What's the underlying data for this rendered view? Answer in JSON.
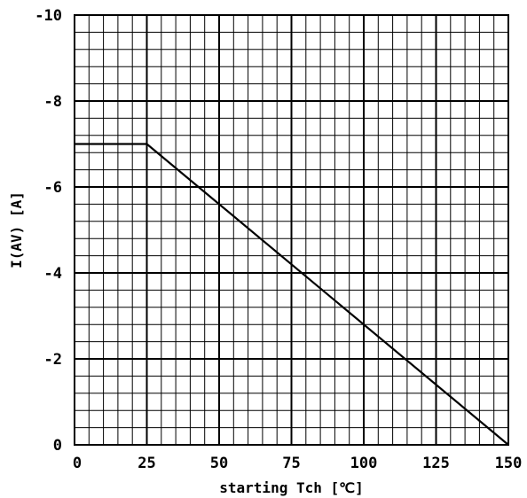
{
  "chart_data": {
    "type": "line",
    "title": "",
    "xlabel": "starting Tch [℃]",
    "ylabel": "I(AV) [A]",
    "xlim": [
      0,
      150
    ],
    "ylim": [
      0,
      -10
    ],
    "x_ticks": [
      0,
      25,
      50,
      75,
      100,
      125,
      150
    ],
    "x_tick_labels": [
      "0",
      "25",
      "50",
      "75",
      "100",
      "125",
      "150"
    ],
    "y_ticks": [
      0,
      -2,
      -4,
      -6,
      -8,
      -10
    ],
    "y_tick_labels": [
      "0",
      "-2",
      "-4",
      "-6",
      "-8",
      "-10"
    ],
    "grid": true,
    "legend": "none",
    "series": [
      {
        "x": [
          0,
          25,
          150
        ],
        "y": [
          -7,
          -7,
          0
        ]
      }
    ]
  }
}
